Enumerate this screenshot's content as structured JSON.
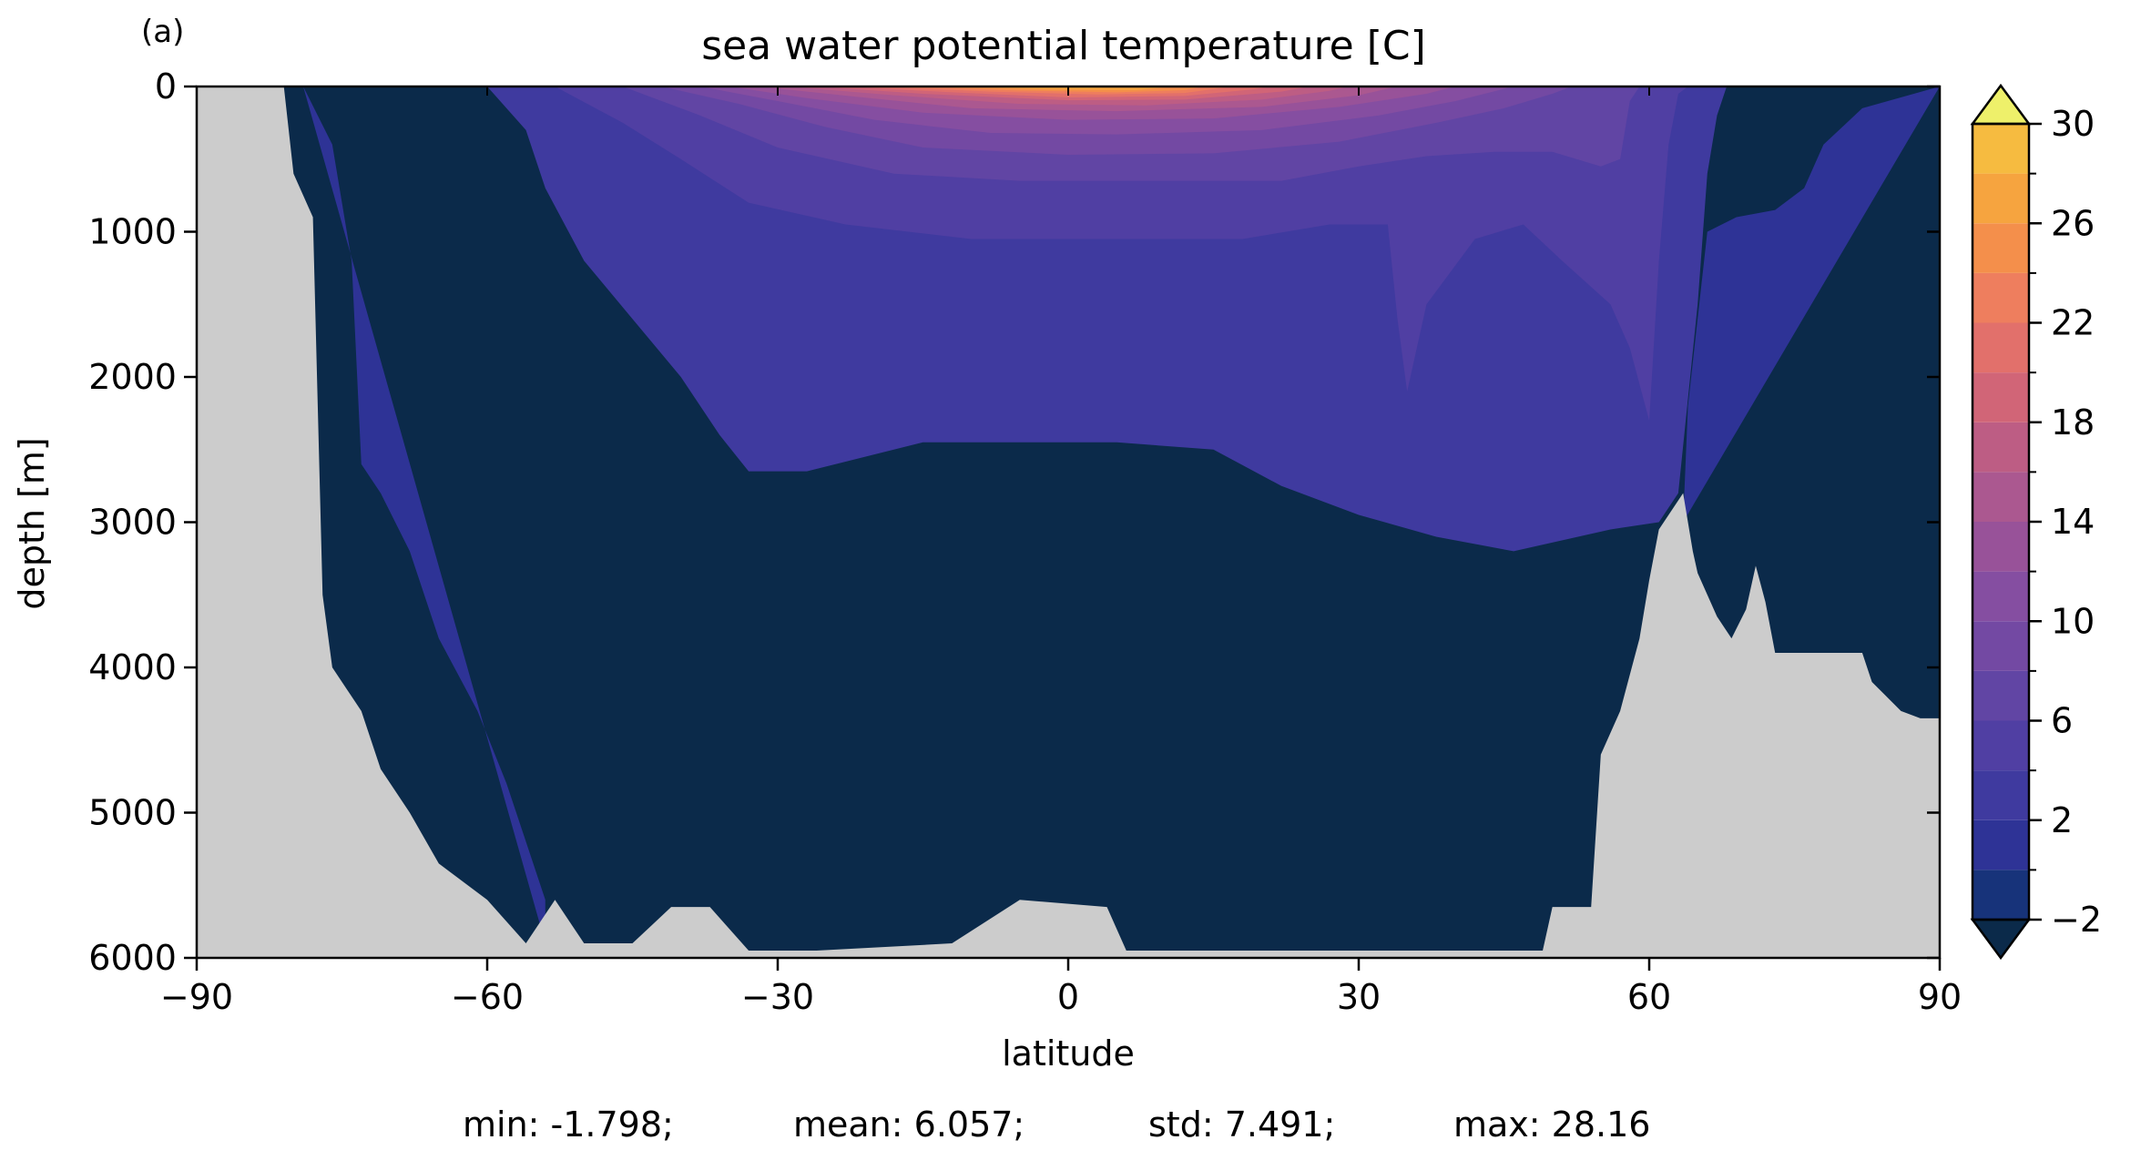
{
  "panel_label": "(a)",
  "stats_line": {
    "min": "min: -1.798;",
    "mean": "mean: 6.057;",
    "std": "std: 7.491;",
    "max": "max: 28.16"
  },
  "colors": {
    "land": "#cccccc",
    "levels": [
      "#0b2a4a",
      "#17337a",
      "#2e3396",
      "#3f3a9f",
      "#503fa3",
      "#6145a4",
      "#7349a3",
      "#854ea1",
      "#985299",
      "#ab5890",
      "#bd5d84",
      "#d16577",
      "#e2706b",
      "#ee7e5e",
      "#f48f4b",
      "#f6a43f",
      "#f6bb40",
      "#f2d24b",
      "#eae35a"
    ],
    "colorbar_over": "#eef06a",
    "colorbar_under": "#0b2a4a"
  },
  "chart_data": {
    "type": "heatmap",
    "title": "sea water potential temperature [C]",
    "xlabel": "latitude",
    "ylabel": "depth [m]",
    "xlim": [
      -90,
      90
    ],
    "ylim": [
      6000,
      0
    ],
    "x_ticks": [
      -90,
      -60,
      -30,
      0,
      30,
      60,
      90
    ],
    "x_tick_labels": [
      "−90",
      "−60",
      "−30",
      "0",
      "30",
      "60",
      "90"
    ],
    "y_ticks": [
      0,
      1000,
      2000,
      3000,
      4000,
      5000,
      6000
    ],
    "y_tick_labels": [
      "0",
      "1000",
      "2000",
      "3000",
      "4000",
      "5000",
      "6000"
    ],
    "colorbar": {
      "levels": [
        -2,
        0,
        2,
        4,
        6,
        8,
        10,
        12,
        14,
        16,
        18,
        20,
        22,
        24,
        26,
        28,
        30
      ],
      "ticks": [
        -2,
        2,
        6,
        10,
        14,
        18,
        22,
        26,
        30
      ],
      "tick_labels": [
        "−2",
        "2",
        "6",
        "10",
        "14",
        "18",
        "22",
        "26",
        "30"
      ],
      "extend": "both"
    },
    "bottom_depth_profile": [
      [
        -90,
        0
      ],
      [
        -81,
        0
      ],
      [
        -80,
        600
      ],
      [
        -78,
        900
      ],
      [
        -77,
        3500
      ],
      [
        -76,
        4000
      ],
      [
        -73,
        4300
      ],
      [
        -71,
        4700
      ],
      [
        -68,
        5000
      ],
      [
        -65,
        5350
      ],
      [
        -60,
        5600
      ],
      [
        -56,
        5900
      ],
      [
        -53,
        5600
      ],
      [
        -50,
        5900
      ],
      [
        -45,
        5900
      ],
      [
        -41,
        5650
      ],
      [
        -37,
        5650
      ],
      [
        -33,
        5950
      ],
      [
        -26,
        5950
      ],
      [
        -12,
        5900
      ],
      [
        -5,
        5600
      ],
      [
        4,
        5650
      ],
      [
        6,
        5950
      ],
      [
        49,
        5950
      ],
      [
        50,
        5650
      ],
      [
        54,
        5650
      ],
      [
        55,
        4600
      ],
      [
        57,
        4300
      ],
      [
        59,
        3800
      ],
      [
        60,
        3400
      ],
      [
        61,
        3050
      ],
      [
        63.5,
        2800
      ],
      [
        64.5,
        3200
      ],
      [
        65,
        3350
      ],
      [
        67,
        3650
      ],
      [
        68.5,
        3800
      ],
      [
        70,
        3600
      ],
      [
        71,
        3300
      ],
      [
        72,
        3550
      ],
      [
        73,
        3900
      ],
      [
        77,
        3900
      ],
      [
        82,
        3900
      ],
      [
        83,
        4100
      ],
      [
        86,
        4300
      ],
      [
        88,
        4350
      ],
      [
        90,
        4350
      ]
    ],
    "isotherms": [
      {
        "level": 0,
        "points": [
          [
            -79,
            0
          ],
          [
            -76,
            400
          ],
          [
            -74,
            1200
          ],
          [
            -73,
            2600
          ],
          [
            -71,
            2800
          ],
          [
            -68,
            3200
          ],
          [
            -65,
            3800
          ],
          [
            -61,
            4300
          ],
          [
            -58,
            4800
          ],
          [
            -56,
            5200
          ],
          [
            -54,
            5600
          ],
          [
            -54,
            5900
          ]
        ]
      },
      {
        "level": 0,
        "points": [
          [
            90,
            0
          ],
          [
            82,
            150
          ],
          [
            78,
            400
          ],
          [
            76,
            700
          ],
          [
            73,
            850
          ],
          [
            69,
            900
          ],
          [
            66,
            1000
          ],
          [
            64,
            2200
          ],
          [
            63.5,
            3000
          ]
        ]
      },
      {
        "level": 2,
        "points": [
          [
            -60,
            0
          ],
          [
            -56,
            300
          ],
          [
            -54,
            700
          ],
          [
            -50,
            1200
          ],
          [
            -45,
            1600
          ],
          [
            -40,
            2000
          ],
          [
            -36,
            2400
          ],
          [
            -33,
            2650
          ],
          [
            -27,
            2650
          ],
          [
            -15,
            2450
          ],
          [
            5,
            2450
          ],
          [
            15,
            2500
          ],
          [
            22,
            2750
          ],
          [
            30,
            2950
          ],
          [
            38,
            3100
          ],
          [
            46,
            3200
          ],
          [
            56,
            3050
          ],
          [
            61,
            3000
          ],
          [
            63,
            2800
          ],
          [
            65,
            1500
          ],
          [
            66,
            600
          ],
          [
            67,
            200
          ],
          [
            68,
            0
          ]
        ]
      },
      {
        "level": 4,
        "points": [
          [
            -53,
            0
          ],
          [
            -46,
            250
          ],
          [
            -40,
            500
          ],
          [
            -33,
            800
          ],
          [
            -23,
            950
          ],
          [
            -10,
            1050
          ],
          [
            5,
            1050
          ],
          [
            18,
            1050
          ],
          [
            27,
            950
          ],
          [
            33,
            950
          ],
          [
            34,
            1600
          ],
          [
            35,
            2100
          ],
          [
            37,
            1500
          ],
          [
            42,
            1050
          ],
          [
            47,
            950
          ],
          [
            51,
            1200
          ],
          [
            56,
            1500
          ],
          [
            58,
            1800
          ],
          [
            60,
            2300
          ],
          [
            61,
            1200
          ],
          [
            62,
            400
          ],
          [
            63,
            50
          ],
          [
            64,
            0
          ]
        ]
      },
      {
        "level": 6,
        "points": [
          [
            -46,
            0
          ],
          [
            -38,
            200
          ],
          [
            -30,
            420
          ],
          [
            -18,
            600
          ],
          [
            -5,
            650
          ],
          [
            8,
            650
          ],
          [
            22,
            650
          ],
          [
            30,
            550
          ],
          [
            37,
            480
          ],
          [
            44,
            450
          ],
          [
            50,
            450
          ],
          [
            55,
            550
          ],
          [
            57,
            500
          ],
          [
            58,
            100
          ],
          [
            59,
            0
          ]
        ]
      },
      {
        "level": 8,
        "points": [
          [
            -42,
            0
          ],
          [
            -34,
            120
          ],
          [
            -25,
            280
          ],
          [
            -15,
            420
          ],
          [
            0,
            470
          ],
          [
            15,
            460
          ],
          [
            28,
            380
          ],
          [
            38,
            250
          ],
          [
            45,
            150
          ],
          [
            50,
            50
          ],
          [
            52,
            0
          ]
        ]
      },
      {
        "level": 10,
        "points": [
          [
            -38,
            0
          ],
          [
            -30,
            100
          ],
          [
            -20,
            230
          ],
          [
            -8,
            320
          ],
          [
            5,
            330
          ],
          [
            20,
            300
          ],
          [
            32,
            200
          ],
          [
            40,
            100
          ],
          [
            46,
            0
          ]
        ]
      },
      {
        "level": 12,
        "points": [
          [
            -35,
            0
          ],
          [
            -27,
            80
          ],
          [
            -15,
            180
          ],
          [
            0,
            230
          ],
          [
            15,
            220
          ],
          [
            28,
            140
          ],
          [
            37,
            50
          ],
          [
            40,
            0
          ]
        ]
      },
      {
        "level": 14,
        "points": [
          [
            -32,
            0
          ],
          [
            -22,
            70
          ],
          [
            -10,
            150
          ],
          [
            5,
            170
          ],
          [
            20,
            140
          ],
          [
            30,
            60
          ],
          [
            34,
            0
          ]
        ]
      },
      {
        "level": 16,
        "points": [
          [
            -29,
            0
          ],
          [
            -18,
            60
          ],
          [
            -5,
            120
          ],
          [
            8,
            130
          ],
          [
            20,
            90
          ],
          [
            27,
            30
          ],
          [
            29,
            0
          ]
        ]
      },
      {
        "level": 18,
        "points": [
          [
            -26,
            0
          ],
          [
            -15,
            50
          ],
          [
            0,
            95
          ],
          [
            12,
            90
          ],
          [
            22,
            35
          ],
          [
            25,
            0
          ]
        ]
      },
      {
        "level": 20,
        "points": [
          [
            -23,
            0
          ],
          [
            -12,
            40
          ],
          [
            0,
            75
          ],
          [
            12,
            65
          ],
          [
            19,
            20
          ],
          [
            21,
            0
          ]
        ]
      },
      {
        "level": 22,
        "points": [
          [
            -20,
            0
          ],
          [
            -8,
            35
          ],
          [
            3,
            55
          ],
          [
            12,
            45
          ],
          [
            17,
            0
          ]
        ]
      },
      {
        "level": 24,
        "points": [
          [
            -16,
            0
          ],
          [
            -5,
            28
          ],
          [
            5,
            40
          ],
          [
            12,
            25
          ],
          [
            14,
            0
          ]
        ]
      },
      {
        "level": 26,
        "points": [
          [
            -12,
            0
          ],
          [
            -2,
            20
          ],
          [
            7,
            25
          ],
          [
            11,
            0
          ]
        ]
      },
      {
        "level": 28,
        "points": [
          [
            -6,
            0
          ],
          [
            2,
            10
          ],
          [
            6,
            0
          ]
        ]
      }
    ]
  }
}
